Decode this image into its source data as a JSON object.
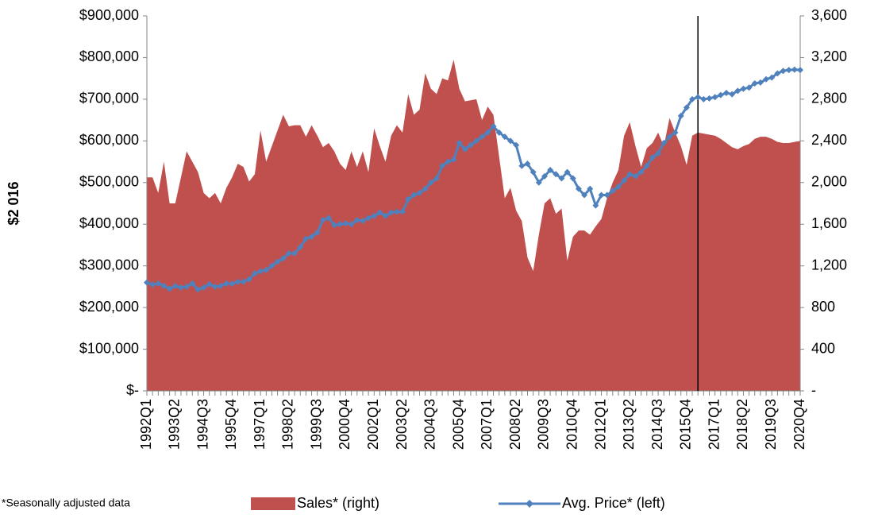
{
  "chart_data": {
    "type": "area-line",
    "ylabel": "$2 016",
    "footnote": "*Seasonally adjusted data",
    "categories": [
      "1992Q1",
      null,
      null,
      null,
      null,
      "1993Q2",
      null,
      null,
      null,
      null,
      "1994Q3",
      null,
      null,
      null,
      null,
      "1995Q4",
      null,
      null,
      null,
      null,
      "1997Q1",
      null,
      null,
      null,
      null,
      "1998Q2",
      null,
      null,
      null,
      null,
      "1999Q3",
      null,
      null,
      null,
      null,
      "2000Q4",
      null,
      null,
      null,
      null,
      "2002Q1",
      null,
      null,
      null,
      null,
      "2003Q2",
      null,
      null,
      null,
      null,
      "2004Q3",
      null,
      null,
      null,
      null,
      "2005Q4",
      null,
      null,
      null,
      null,
      "2007Q1",
      null,
      null,
      null,
      null,
      "2008Q2",
      null,
      null,
      null,
      null,
      "2009Q3",
      null,
      null,
      null,
      null,
      "2010Q4",
      null,
      null,
      null,
      null,
      "2012Q1",
      null,
      null,
      null,
      null,
      "2013Q2",
      null,
      null,
      null,
      null,
      "2014Q3",
      null,
      null,
      null,
      null,
      "2015Q4",
      null,
      null,
      null,
      null,
      "2017Q1",
      null,
      null,
      null,
      null,
      "2018Q2",
      null,
      null,
      null,
      null,
      "2019Q3",
      null,
      null,
      null,
      null,
      "2020Q4"
    ],
    "series": [
      {
        "name": "Sales* (right)",
        "type": "area",
        "axis": "y2",
        "color": "#c0504d",
        "values": [
          2050,
          2050,
          1900,
          2200,
          1800,
          1800,
          2050,
          2300,
          2200,
          2100,
          1900,
          1850,
          1900,
          1800,
          1950,
          2050,
          2180,
          2150,
          2010,
          2080,
          2500,
          2200,
          2350,
          2500,
          2650,
          2540,
          2550,
          2550,
          2440,
          2550,
          2450,
          2340,
          2380,
          2300,
          2180,
          2120,
          2300,
          2150,
          2300,
          2100,
          2520,
          2350,
          2200,
          2450,
          2550,
          2480,
          2850,
          2650,
          2700,
          3050,
          2900,
          2850,
          3000,
          2980,
          3180,
          2900,
          2780,
          2790,
          2800,
          2600,
          2730,
          2650,
          2250,
          1850,
          1950,
          1730,
          1630,
          1280,
          1150,
          1500,
          1800,
          1850,
          1700,
          1750,
          1250,
          1480,
          1540,
          1540,
          1500,
          1580,
          1650,
          1850,
          2000,
          2120,
          2450,
          2580,
          2350,
          2150,
          2330,
          2380,
          2480,
          2350,
          2620,
          2480,
          2350,
          2170,
          2450,
          2480,
          2470,
          2460,
          2450,
          2420,
          2380,
          2340,
          2320,
          2350,
          2370,
          2420,
          2440,
          2440,
          2420,
          2390,
          2380,
          2380,
          2390,
          2400
        ]
      },
      {
        "name": "Avg. Price* (left)",
        "type": "line",
        "axis": "y",
        "color": "#4f81bd",
        "values": [
          260000,
          255000,
          258000,
          252000,
          245000,
          252000,
          248000,
          250000,
          258000,
          243000,
          248000,
          256000,
          250000,
          252000,
          258000,
          257000,
          262000,
          262000,
          268000,
          282000,
          287000,
          290000,
          300000,
          310000,
          318000,
          330000,
          330000,
          345000,
          365000,
          370000,
          380000,
          410000,
          415000,
          398000,
          400000,
          402000,
          400000,
          410000,
          408000,
          415000,
          420000,
          428000,
          420000,
          428000,
          430000,
          430000,
          460000,
          470000,
          475000,
          485000,
          500000,
          510000,
          540000,
          550000,
          555000,
          595000,
          580000,
          590000,
          600000,
          610000,
          620000,
          635000,
          620000,
          610000,
          600000,
          590000,
          540000,
          545000,
          525000,
          500000,
          515000,
          530000,
          520000,
          510000,
          525000,
          510000,
          485000,
          470000,
          485000,
          445000,
          470000,
          470000,
          480000,
          490000,
          505000,
          520000,
          515000,
          525000,
          540000,
          560000,
          570000,
          595000,
          610000,
          620000,
          660000,
          680000,
          700000,
          705000,
          700000,
          702000,
          705000,
          710000,
          715000,
          712000,
          720000,
          725000,
          728000,
          738000,
          740000,
          748000,
          752000,
          762000,
          768000,
          770000,
          771000,
          770000
        ]
      }
    ],
    "ylim": [
      0,
      900000
    ],
    "yticks": [
      {
        "value": 0,
        "label": "$-"
      },
      {
        "value": 100000,
        "label": "$100,000"
      },
      {
        "value": 200000,
        "label": "$200,000"
      },
      {
        "value": 300000,
        "label": "$300,000"
      },
      {
        "value": 400000,
        "label": "$400,000"
      },
      {
        "value": 500000,
        "label": "$500,000"
      },
      {
        "value": 600000,
        "label": "$600,000"
      },
      {
        "value": 700000,
        "label": "$700,000"
      },
      {
        "value": 800000,
        "label": "$800,000"
      },
      {
        "value": 900000,
        "label": "$900,000"
      }
    ],
    "y2lim": [
      0,
      3600
    ],
    "y2ticks": [
      {
        "value": 0,
        "label": "-"
      },
      400,
      800,
      {
        "value": 1200,
        "label": "1,200"
      },
      {
        "value": 1600,
        "label": "1,600"
      },
      {
        "value": 2000,
        "label": "2,000"
      },
      {
        "value": 2400,
        "label": "2,400"
      },
      {
        "value": 2800,
        "label": "2,800"
      },
      {
        "value": 3200,
        "label": "3,200"
      },
      {
        "value": 3600,
        "label": "3,600"
      }
    ],
    "annotations": [
      {
        "type": "vline",
        "index": 97
      }
    ]
  }
}
